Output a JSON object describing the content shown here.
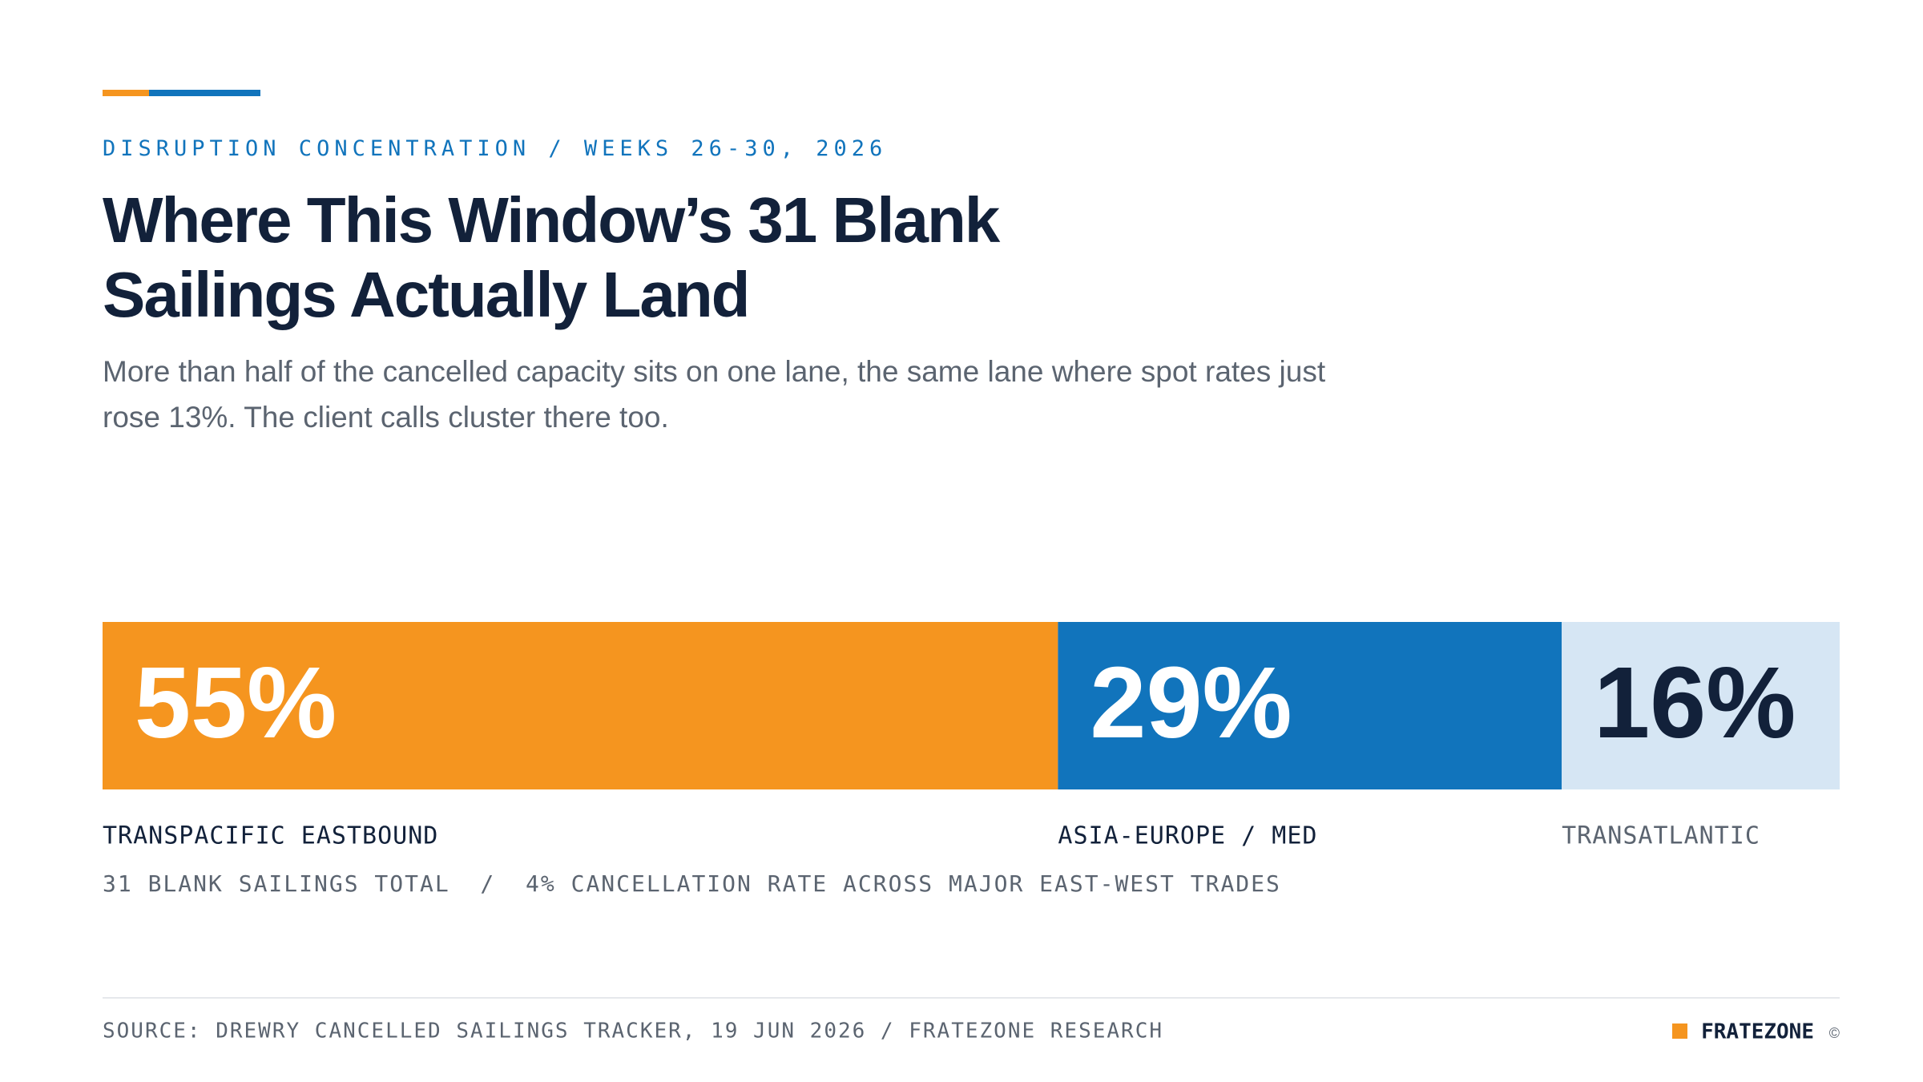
{
  "chart_data": {
    "type": "bar",
    "eyebrow": "DISRUPTION CONCENTRATION / WEEKS 26-30, 2026",
    "title": "Where This Window’s 31 Blank Sailings Actually Land",
    "subtitle": "More than half of the cancelled capacity sits on one lane, the same lane where spot rates just rose 13%. The client calls cluster there too.",
    "categories": [
      "TRANSPACIFIC EASTBOUND",
      "ASIA-EUROPE / MED",
      "TRANSATLANTIC"
    ],
    "values": [
      55,
      29,
      16
    ],
    "value_labels": [
      "55%",
      "29%",
      "16%"
    ],
    "colors": [
      "#f5951f",
      "#1174bc",
      "#d6e6f4"
    ],
    "note": "31 BLANK SAILINGS TOTAL  /  4% CANCELLATION RATE ACROSS MAJOR EAST-WEST TRADES",
    "source": "SOURCE: DREWRY CANCELLED SAILINGS TRACKER, 19 JUN 2026 / FRATEZONE RESEARCH",
    "brand": "FRATEZONE",
    "copyright": "©"
  }
}
